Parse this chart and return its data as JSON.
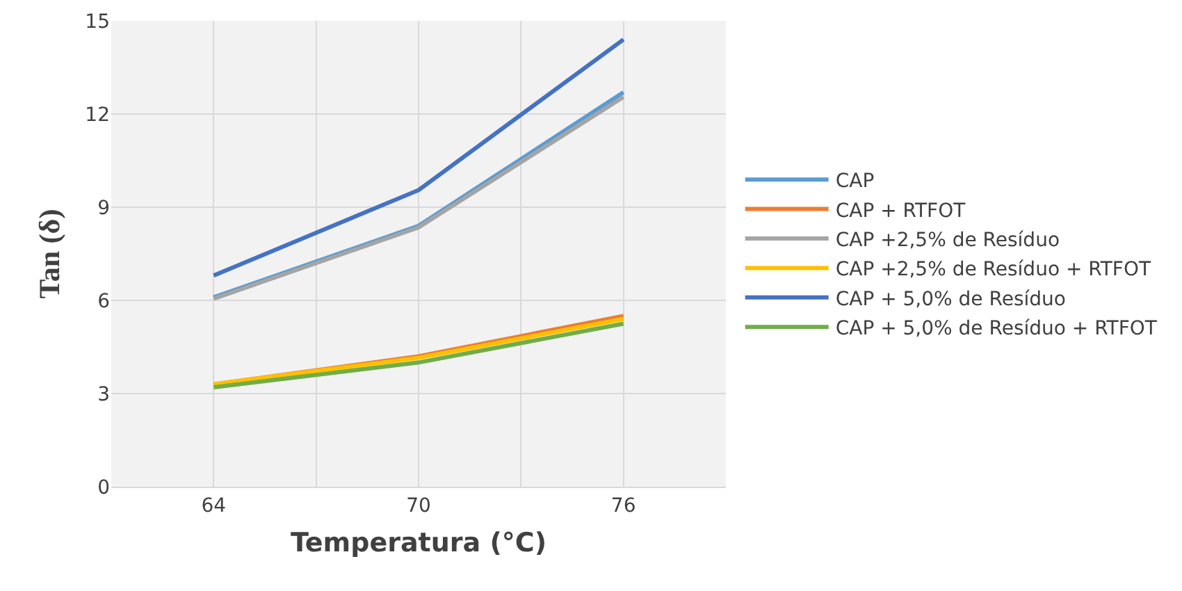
{
  "chart_data": {
    "type": "line",
    "xlabel": "Temperatura (°C)",
    "ylabel": "Tan (δ)",
    "x": [
      64,
      70,
      76
    ],
    "xlim": [
      61,
      79
    ],
    "xticks": [
      64,
      {
        "value": 67,
        "label": null
      },
      70,
      {
        "value": 73,
        "label": null
      },
      76
    ],
    "ylim": [
      0,
      15
    ],
    "yticks": [
      0,
      3,
      6,
      9,
      12,
      15
    ],
    "grid": true,
    "legend": "right",
    "marker": "none",
    "line_style": "solid",
    "series": [
      {
        "name": "CAP",
        "color": "#5b9bd5",
        "values": [
          6.1,
          8.4,
          12.7
        ]
      },
      {
        "name": "CAP + RTFOT",
        "color": "#ed7d31",
        "values": [
          3.3,
          4.2,
          5.5
        ]
      },
      {
        "name": "CAP +2,5% de Resíduo",
        "color": "#a5a5a5",
        "values": [
          6.05,
          8.35,
          12.55
        ]
      },
      {
        "name": "CAP +2,5% de Resíduo + RTFOT",
        "color": "#ffc000",
        "values": [
          3.3,
          4.15,
          5.4
        ]
      },
      {
        "name": "CAP + 5,0% de Resíduo",
        "color": "#4472c4",
        "values": [
          6.8,
          9.55,
          14.4
        ]
      },
      {
        "name": "CAP + 5,0% de Resíduo + RTFOT",
        "color": "#70ad47",
        "values": [
          3.2,
          4.0,
          5.25
        ]
      }
    ]
  }
}
